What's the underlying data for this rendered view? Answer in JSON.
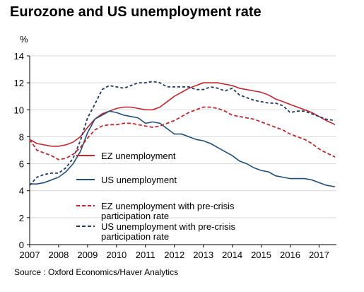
{
  "chart_data": {
    "type": "line",
    "title": "Eurozone and US unemployment rate",
    "ylabel": "%",
    "xlabel": "",
    "ylim": [
      0,
      14
    ],
    "xlim": [
      2007,
      2017.6
    ],
    "yticks": [
      0,
      2,
      4,
      6,
      8,
      10,
      12,
      14
    ],
    "xticks": [
      2007,
      2008,
      2009,
      2010,
      2011,
      2012,
      2013,
      2014,
      2015,
      2016,
      2017
    ],
    "grid": "horizontal",
    "legend_position": "center-right",
    "source": "Source : Oxford Economics/Haver Analytics",
    "series": [
      {
        "name": "EZ unemployment",
        "color": "#c0282f",
        "style": "solid",
        "legend_lines": [
          "EZ unemployment"
        ],
        "x": [
          2007.0,
          2007.25,
          2007.5,
          2007.75,
          2008.0,
          2008.25,
          2008.5,
          2008.75,
          2009.0,
          2009.25,
          2009.5,
          2009.75,
          2010.0,
          2010.25,
          2010.5,
          2010.75,
          2011.0,
          2011.25,
          2011.5,
          2011.75,
          2012.0,
          2012.25,
          2012.5,
          2012.75,
          2013.0,
          2013.25,
          2013.5,
          2013.75,
          2014.0,
          2014.25,
          2014.5,
          2014.75,
          2015.0,
          2015.25,
          2015.5,
          2015.75,
          2016.0,
          2016.25,
          2016.5,
          2016.75,
          2017.0,
          2017.25,
          2017.55
        ],
        "y": [
          7.8,
          7.5,
          7.4,
          7.3,
          7.3,
          7.4,
          7.6,
          8.0,
          8.7,
          9.3,
          9.7,
          9.9,
          10.1,
          10.2,
          10.2,
          10.1,
          10.0,
          10.0,
          10.2,
          10.6,
          11.0,
          11.3,
          11.6,
          11.8,
          12.0,
          12.0,
          12.0,
          11.9,
          11.8,
          11.6,
          11.5,
          11.4,
          11.3,
          11.1,
          10.8,
          10.6,
          10.4,
          10.2,
          10.0,
          9.8,
          9.5,
          9.2,
          8.9
        ]
      },
      {
        "name": "US unemployment",
        "color": "#1f4e79",
        "style": "solid",
        "legend_lines": [
          "US unemployment"
        ],
        "x": [
          2007.0,
          2007.25,
          2007.5,
          2007.75,
          2008.0,
          2008.25,
          2008.5,
          2008.75,
          2009.0,
          2009.25,
          2009.5,
          2009.75,
          2010.0,
          2010.25,
          2010.5,
          2010.75,
          2011.0,
          2011.25,
          2011.5,
          2011.75,
          2012.0,
          2012.25,
          2012.5,
          2012.75,
          2013.0,
          2013.25,
          2013.5,
          2013.75,
          2014.0,
          2014.25,
          2014.5,
          2014.75,
          2015.0,
          2015.25,
          2015.5,
          2015.75,
          2016.0,
          2016.25,
          2016.5,
          2016.75,
          2017.0,
          2017.25,
          2017.55
        ],
        "y": [
          4.5,
          4.5,
          4.6,
          4.8,
          5.0,
          5.4,
          6.0,
          6.9,
          8.3,
          9.3,
          9.6,
          9.9,
          9.8,
          9.6,
          9.5,
          9.4,
          9.0,
          9.1,
          9.0,
          8.6,
          8.2,
          8.2,
          8.0,
          7.8,
          7.7,
          7.5,
          7.2,
          6.9,
          6.6,
          6.2,
          6.0,
          5.7,
          5.5,
          5.4,
          5.1,
          5.0,
          4.9,
          4.9,
          4.9,
          4.8,
          4.6,
          4.4,
          4.3
        ]
      },
      {
        "name": "EZ unemployment with pre-crisis participation rate",
        "color": "#c0282f",
        "style": "dashed",
        "legend_lines": [
          "EZ unemployment with pre-crisis",
          "participation rate"
        ],
        "x": [
          2007.0,
          2007.25,
          2007.5,
          2007.75,
          2008.0,
          2008.25,
          2008.5,
          2008.75,
          2009.0,
          2009.25,
          2009.5,
          2009.75,
          2010.0,
          2010.25,
          2010.5,
          2010.75,
          2011.0,
          2011.25,
          2011.5,
          2011.75,
          2012.0,
          2012.25,
          2012.5,
          2012.75,
          2013.0,
          2013.25,
          2013.5,
          2013.75,
          2014.0,
          2014.25,
          2014.5,
          2014.75,
          2015.0,
          2015.25,
          2015.5,
          2015.75,
          2016.0,
          2016.25,
          2016.5,
          2016.75,
          2017.0,
          2017.25,
          2017.55
        ],
        "y": [
          7.8,
          7.0,
          6.8,
          6.6,
          6.3,
          6.4,
          6.7,
          7.2,
          7.9,
          8.5,
          8.8,
          8.9,
          8.9,
          9.0,
          9.0,
          8.9,
          8.8,
          8.7,
          8.8,
          9.0,
          9.2,
          9.5,
          9.8,
          10.0,
          10.2,
          10.2,
          10.1,
          9.9,
          9.6,
          9.5,
          9.4,
          9.3,
          9.1,
          8.9,
          8.7,
          8.5,
          8.2,
          8.0,
          7.8,
          7.5,
          7.1,
          6.8,
          6.5
        ]
      },
      {
        "name": "US unemployment with pre-crisis participation rate",
        "color": "#1f3864",
        "style": "dashed",
        "legend_lines": [
          "US unemployment with pre-crisis",
          "participation rate"
        ],
        "x": [
          2007.0,
          2007.25,
          2007.5,
          2007.75,
          2008.0,
          2008.25,
          2008.5,
          2008.75,
          2009.0,
          2009.25,
          2009.5,
          2009.75,
          2010.0,
          2010.25,
          2010.5,
          2010.75,
          2011.0,
          2011.25,
          2011.5,
          2011.75,
          2012.0,
          2012.25,
          2012.5,
          2012.75,
          2013.0,
          2013.25,
          2013.5,
          2013.75,
          2014.0,
          2014.25,
          2014.5,
          2014.75,
          2015.0,
          2015.25,
          2015.5,
          2015.75,
          2016.0,
          2016.25,
          2016.5,
          2016.75,
          2017.0,
          2017.25,
          2017.55
        ],
        "y": [
          4.4,
          5.0,
          5.2,
          5.3,
          5.3,
          5.7,
          6.4,
          7.7,
          9.4,
          10.4,
          11.5,
          11.8,
          11.7,
          11.6,
          11.8,
          12.0,
          12.0,
          12.1,
          12.0,
          11.7,
          11.7,
          11.7,
          11.7,
          11.5,
          11.5,
          11.7,
          11.6,
          11.4,
          11.6,
          11.1,
          10.9,
          10.7,
          10.6,
          10.5,
          10.5,
          10.3,
          9.8,
          9.9,
          9.9,
          9.7,
          9.5,
          9.3,
          9.2
        ]
      }
    ]
  }
}
